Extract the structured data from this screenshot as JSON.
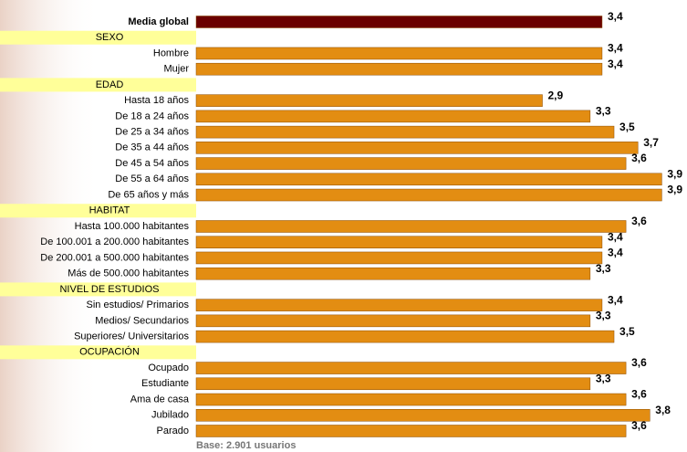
{
  "chart_data": {
    "type": "bar",
    "total": {
      "category": "Media global",
      "value": 3.4,
      "value_label": "3,4",
      "color": "#6b0000"
    },
    "color": "#e38d12",
    "xlim": [
      0,
      4.05
    ],
    "groups": [
      {
        "name": "SEXO",
        "categories": [
          "Hombre",
          "Mujer"
        ],
        "values": [
          3.4,
          3.4
        ],
        "value_labels": [
          "3,4",
          "3,4"
        ]
      },
      {
        "name": "EDAD",
        "categories": [
          "Hasta 18 años",
          "De 18 a 24 años",
          "De 25 a 34 años",
          "De 35 a 44 años",
          "De 45 a 54 años",
          "De 55 a 64 años",
          "De 65 años y más"
        ],
        "values": [
          2.9,
          3.3,
          3.5,
          3.7,
          3.6,
          3.9,
          3.9
        ],
        "value_labels": [
          "2,9",
          "3,3",
          "3,5",
          "3,7",
          "3,6",
          "3,9",
          "3,9"
        ]
      },
      {
        "name": "HABITAT",
        "categories": [
          "Hasta 100.000 habitantes",
          "De 100.001 a 200.000 habitantes",
          "De 200.001 a 500.000 habitantes",
          "Más de 500.000 habitantes"
        ],
        "values": [
          3.6,
          3.4,
          3.4,
          3.3
        ],
        "value_labels": [
          "3,6",
          "3,4",
          "3,4",
          "3,3"
        ]
      },
      {
        "name": "NIVEL DE ESTUDIOS",
        "categories": [
          "Sin estudios/ Primarios",
          "Medios/ Secundarios",
          "Superiores/ Universitarios"
        ],
        "values": [
          3.4,
          3.3,
          3.5
        ],
        "value_labels": [
          "3,4",
          "3,3",
          "3,5"
        ]
      },
      {
        "name": "OCUPACIÓN",
        "categories": [
          "Ocupado",
          "Estudiante",
          "Ama de casa",
          "Jubilado",
          "Parado"
        ],
        "values": [
          3.6,
          3.3,
          3.6,
          3.8,
          3.6
        ],
        "value_labels": [
          "3,6",
          "3,3",
          "3,6",
          "3,8",
          "3,6"
        ]
      }
    ],
    "footnote": "Base: 2.901 usuarios"
  }
}
